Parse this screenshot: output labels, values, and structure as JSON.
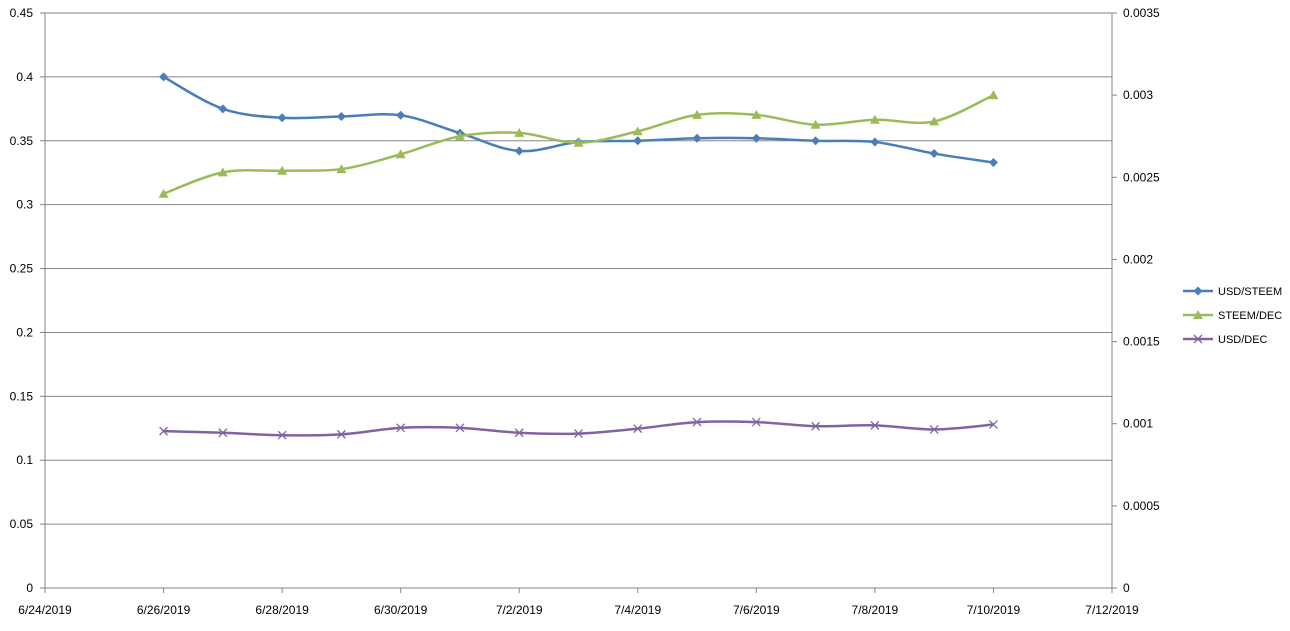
{
  "chart_data": {
    "type": "line",
    "x": [
      "6/26/2019",
      "6/27/2019",
      "6/28/2019",
      "6/29/2019",
      "6/30/2019",
      "7/1/2019",
      "7/2/2019",
      "7/3/2019",
      "7/4/2019",
      "7/5/2019",
      "7/6/2019",
      "7/7/2019",
      "7/8/2019",
      "7/9/2019",
      "7/10/2019"
    ],
    "x_ticks": [
      "6/24/2019",
      "6/26/2019",
      "6/28/2019",
      "6/30/2019",
      "7/2/2019",
      "7/4/2019",
      "7/6/2019",
      "7/8/2019",
      "7/10/2019",
      "7/12/2019"
    ],
    "xlim": [
      "6/24/2019",
      "7/12/2019"
    ],
    "y_left": {
      "lim": [
        0,
        0.45
      ],
      "ticks": [
        "0",
        "0.05",
        "0.1",
        "0.15",
        "0.2",
        "0.25",
        "0.3",
        "0.35",
        "0.4",
        "0.45"
      ]
    },
    "y_right": {
      "lim": [
        0,
        0.0035
      ],
      "ticks": [
        "0",
        "0.0005",
        "0.001",
        "0.0015",
        "0.002",
        "0.0025",
        "0.003",
        "0.0035"
      ]
    },
    "grid": "horizontal",
    "legend_position": "right",
    "smoothed": true,
    "series": [
      {
        "name": "USD/STEEM",
        "axis": "left",
        "color": "#4a7ebb",
        "marker": "diamond",
        "values": [
          0.4,
          0.375,
          0.368,
          0.369,
          0.37,
          0.356,
          0.342,
          0.349,
          0.35,
          0.352,
          0.352,
          0.35,
          0.349,
          0.34,
          0.333
        ]
      },
      {
        "name": "STEEM/DEC",
        "axis": "right",
        "color": "#9bbb59",
        "marker": "triangle",
        "values": [
          0.0024,
          0.00253,
          0.00254,
          0.00255,
          0.00264,
          0.00275,
          0.00277,
          0.00271,
          0.00278,
          0.00288,
          0.00288,
          0.00282,
          0.00285,
          0.00284,
          0.003
        ]
      },
      {
        "name": "USD/DEC",
        "axis": "right",
        "color": "#8064a2",
        "marker": "x",
        "values": [
          0.000955,
          0.000945,
          0.00093,
          0.000935,
          0.000975,
          0.000975,
          0.000945,
          0.00094,
          0.00097,
          0.00101,
          0.00101,
          0.000985,
          0.00099,
          0.000965,
          0.000995
        ]
      }
    ]
  }
}
